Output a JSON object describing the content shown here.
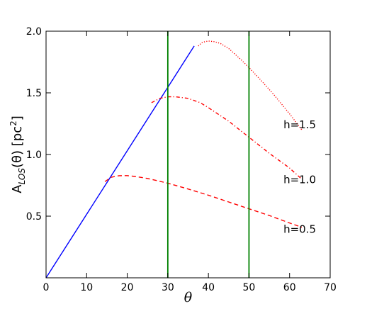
{
  "chart_data": {
    "type": "line",
    "title": "",
    "xlabel": "θ",
    "ylabel": {
      "main": "A",
      "sub": "LOS",
      "mid": "(θ) [pc",
      "sup": "2",
      "end": "]"
    },
    "xlim": [
      0,
      70
    ],
    "ylim": [
      0,
      2.0
    ],
    "x_ticks": [
      0,
      10,
      20,
      30,
      40,
      50,
      60,
      70
    ],
    "x_tick_labels": [
      "0",
      "10",
      "20",
      "30",
      "40",
      "50",
      "60",
      "70"
    ],
    "y_ticks": [
      0.5,
      1.0,
      1.5,
      2.0
    ],
    "y_tick_labels": [
      "0.5",
      "1.0",
      "1.5",
      "2.0"
    ],
    "grid": false,
    "vertical_lines": [
      {
        "x": 30,
        "color": "#008000"
      },
      {
        "x": 50,
        "color": "#008000"
      }
    ],
    "series": [
      {
        "color": "#0000ff",
        "style": "solid",
        "x": [
          0,
          36.5
        ],
        "y": [
          0,
          1.88
        ]
      },
      {
        "label": "h=0.5",
        "color": "#ff0000",
        "style": "dashed",
        "x": [
          14.5,
          16,
          18,
          20,
          22,
          25,
          28,
          30,
          35,
          40,
          45,
          50,
          55,
          60,
          63
        ],
        "y": [
          0.78,
          0.815,
          0.828,
          0.829,
          0.822,
          0.806,
          0.783,
          0.767,
          0.72,
          0.67,
          0.615,
          0.56,
          0.505,
          0.445,
          0.41
        ]
      },
      {
        "label": "h=1.0",
        "color": "#ff0000",
        "style": "dashdot",
        "x": [
          26,
          28,
          30,
          32,
          35,
          38,
          40,
          45,
          50,
          55,
          60,
          63
        ],
        "y": [
          1.42,
          1.455,
          1.468,
          1.468,
          1.455,
          1.42,
          1.38,
          1.27,
          1.14,
          1.01,
          0.89,
          0.8
        ]
      },
      {
        "label": "h=1.5",
        "color": "#ff0000",
        "style": "dotted",
        "x": [
          37.5,
          38.5,
          40,
          41.5,
          43,
          45,
          48,
          50,
          53,
          56,
          60,
          63
        ],
        "y": [
          1.88,
          1.91,
          1.92,
          1.915,
          1.9,
          1.86,
          1.77,
          1.705,
          1.6,
          1.49,
          1.33,
          1.2
        ]
      }
    ],
    "annotations": [
      {
        "text": "h=1.5",
        "x": 58.5,
        "y": 1.24
      },
      {
        "text": "h=1.0",
        "x": 58.5,
        "y": 0.795
      },
      {
        "text": "h=0.5",
        "x": 58.5,
        "y": 0.395
      }
    ]
  }
}
